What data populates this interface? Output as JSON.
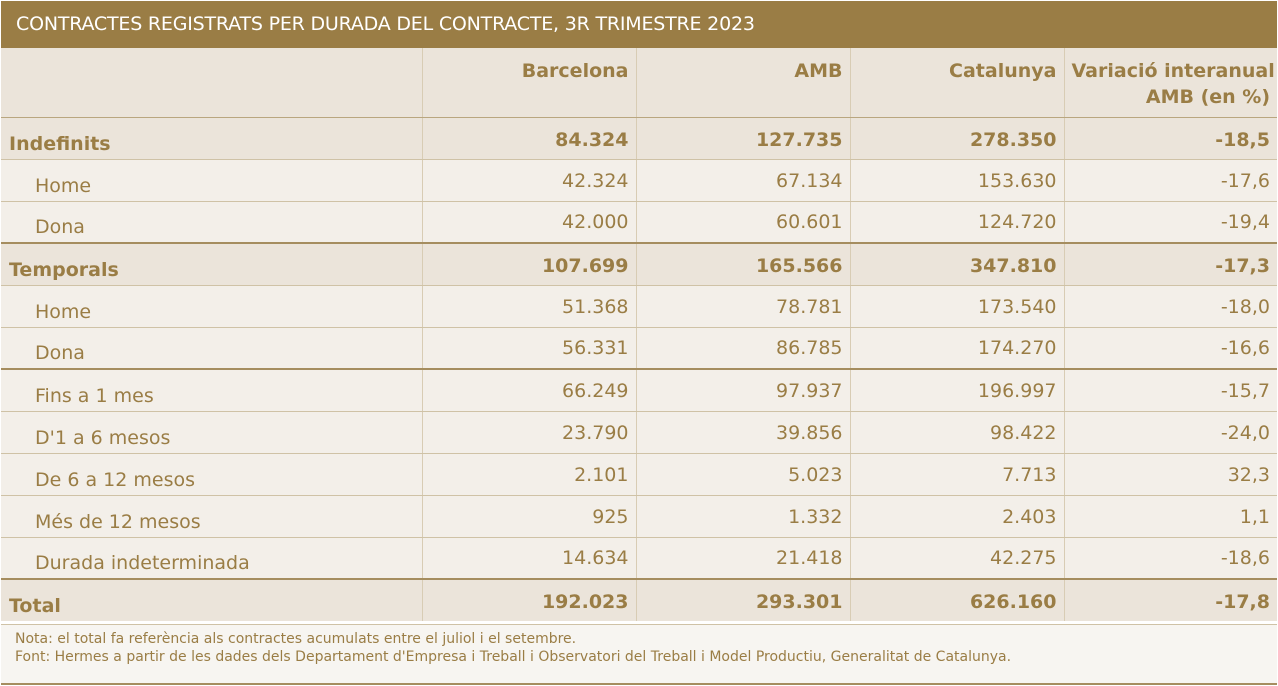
{
  "title": "CONTRACTES REGISTRATS PER DURADA DEL CONTRACTE, 3R TRIMESTRE 2023",
  "columns": {
    "c0": "",
    "c1": "Barcelona",
    "c2": "AMB",
    "c3": "Catalunya",
    "c4_line1": "Variació interanual",
    "c4_line2": "AMB (en %)"
  },
  "rows": [
    {
      "label": "Indefinits",
      "barcelona": "84.324",
      "amb": "127.735",
      "catalunya": "278.350",
      "variacio": "-18,5"
    },
    {
      "label": "Home",
      "barcelona": "42.324",
      "amb": "67.134",
      "catalunya": "153.630",
      "variacio": "-17,6"
    },
    {
      "label": "Dona",
      "barcelona": "42.000",
      "amb": "60.601",
      "catalunya": "124.720",
      "variacio": "-19,4"
    },
    {
      "label": "Temporals",
      "barcelona": "107.699",
      "amb": "165.566",
      "catalunya": "347.810",
      "variacio": "-17,3"
    },
    {
      "label": "Home",
      "barcelona": "51.368",
      "amb": "78.781",
      "catalunya": "173.540",
      "variacio": "-18,0"
    },
    {
      "label": "Dona",
      "barcelona": "56.331",
      "amb": "86.785",
      "catalunya": "174.270",
      "variacio": "-16,6"
    },
    {
      "label": "Fins a 1 mes",
      "barcelona": "66.249",
      "amb": "97.937",
      "catalunya": "196.997",
      "variacio": "-15,7"
    },
    {
      "label": "D'1 a 6 mesos",
      "barcelona": "23.790",
      "amb": "39.856",
      "catalunya": "98.422",
      "variacio": "-24,0"
    },
    {
      "label": "De 6 a 12 mesos",
      "barcelona": "2.101",
      "amb": "5.023",
      "catalunya": "7.713",
      "variacio": "32,3"
    },
    {
      "label": "Més de 12 mesos",
      "barcelona": "925",
      "amb": "1.332",
      "catalunya": "2.403",
      "variacio": "1,1"
    },
    {
      "label": "Durada indeterminada",
      "barcelona": "14.634",
      "amb": "21.418",
      "catalunya": "42.275",
      "variacio": "-18,6"
    },
    {
      "label": "Total",
      "barcelona": "192.023",
      "amb": "293.301",
      "catalunya": "626.160",
      "variacio": "-17,8"
    }
  ],
  "notes": {
    "nota": "Nota: el total fa referència als contractes acumulats entre el juliol i el setembre.",
    "font": "Font: Hermes a partir de les dades dels Departament d'Empresa i Treball i Observatori del Treball i Model Productiu, Generalitat de Catalunya."
  },
  "colors": {
    "accent": "#9a7d45",
    "header_bg": "#ebe4da",
    "row_bg": "#f3efe9"
  }
}
